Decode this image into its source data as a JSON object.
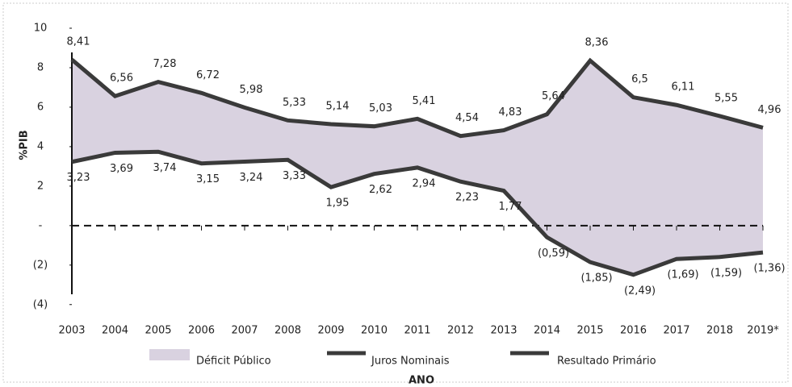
{
  "chart_data": {
    "type": "line",
    "y_label": "%PIB",
    "x_label": "ANO",
    "categories": [
      "2003",
      "2004",
      "2005",
      "2006",
      "2007",
      "2008",
      "2009",
      "2010",
      "2011",
      "2012",
      "2013",
      "2014",
      "2015",
      "2016",
      "2017",
      "2018",
      "2019*"
    ],
    "area_name": "Déficit Público",
    "area_color": "#d9d2e0",
    "series": [
      {
        "name": "Juros Nominais",
        "color": "#3a3a3a",
        "values": [
          8.41,
          6.56,
          7.28,
          6.72,
          5.98,
          5.33,
          5.14,
          5.03,
          5.41,
          4.54,
          4.83,
          5.64,
          8.36,
          6.5,
          6.11,
          5.55,
          4.96
        ],
        "value_labels": [
          "8,41",
          "6,56",
          "7,28",
          "6,72",
          "5,98",
          "5,33",
          "5,14",
          "5,03",
          "5,41",
          "4,54",
          "4,83",
          "5,64",
          "8,36",
          "6,5",
          "6,11",
          "5,55",
          "4,96"
        ]
      },
      {
        "name": "Resultado Primário",
        "color": "#3a3a3a",
        "values": [
          3.23,
          3.69,
          3.74,
          3.15,
          3.24,
          3.33,
          1.95,
          2.62,
          2.94,
          2.23,
          1.77,
          -0.59,
          -1.85,
          -2.49,
          -1.69,
          -1.59,
          -1.36
        ],
        "value_labels": [
          "3,23",
          "3,69",
          "3,74",
          "3,15",
          "3,24",
          "3,33",
          "1,95",
          "2,62",
          "2,94",
          "2,23",
          "1,77",
          "(0,59)",
          "(1,85)",
          "(2,49)",
          "(1,69)",
          "(1,59)",
          "(1,36)"
        ]
      }
    ],
    "ylim": [
      -4.5,
      10
    ],
    "yticks": [
      10,
      8,
      6,
      4,
      2,
      {
        "value": 0,
        "label": "-"
      },
      {
        "value": -2,
        "label": "(2)"
      },
      {
        "value": -4,
        "label": "(4)"
      }
    ],
    "grid": false
  }
}
